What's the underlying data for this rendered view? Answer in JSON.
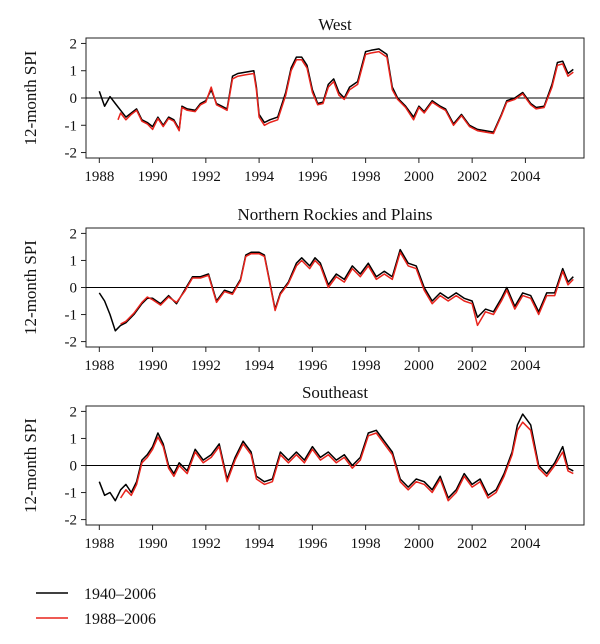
{
  "chart_data": [
    {
      "type": "line",
      "title": "West",
      "ylabel": "12-month SPI",
      "xlabel": "",
      "xlim": [
        1987.5,
        2006.2
      ],
      "ylim": [
        -2.2,
        2.2
      ],
      "xticks": [
        1988,
        1990,
        1992,
        1994,
        1996,
        1998,
        2000,
        2002,
        2004
      ],
      "xtick_labels": [
        "1988",
        "1990",
        "1992",
        "1994",
        "1996",
        "1998",
        "2000",
        "2002",
        "2004"
      ],
      "yticks": [
        -2,
        -1,
        0,
        1,
        2
      ],
      "ytick_labels": [
        "-2",
        "-1",
        "0",
        "1",
        "2"
      ],
      "reference_line": 0,
      "series": [
        {
          "name": "1940–2006",
          "color": "#000000",
          "x": [
            1988.0,
            1988.2,
            1988.4,
            1988.6,
            1988.8,
            1989.0,
            1989.2,
            1989.4,
            1989.6,
            1989.8,
            1990.0,
            1990.2,
            1990.4,
            1990.6,
            1990.8,
            1991.0,
            1991.1,
            1991.3,
            1991.6,
            1991.8,
            1992.0,
            1992.2,
            1992.4,
            1992.6,
            1992.8,
            1993.0,
            1993.2,
            1993.5,
            1993.8,
            1993.9,
            1994.0,
            1994.2,
            1994.4,
            1994.7,
            1995.0,
            1995.2,
            1995.4,
            1995.6,
            1995.8,
            1996.0,
            1996.2,
            1996.4,
            1996.6,
            1996.8,
            1997.0,
            1997.2,
            1997.4,
            1997.7,
            1998.0,
            1998.2,
            1998.5,
            1998.8,
            1999.0,
            1999.2,
            1999.5,
            1999.8,
            2000.0,
            2000.2,
            2000.5,
            2000.8,
            2001.0,
            2001.3,
            2001.6,
            2001.9,
            2002.2,
            2002.5,
            2002.8,
            2003.1,
            2003.3,
            2003.6,
            2003.9,
            2004.2,
            2004.4,
            2004.7,
            2005.0,
            2005.2,
            2005.4,
            2005.6,
            2005.8
          ],
          "y": [
            0.25,
            -0.3,
            0.05,
            -0.2,
            -0.45,
            -0.7,
            -0.55,
            -0.4,
            -0.8,
            -0.9,
            -1.05,
            -0.7,
            -1.0,
            -0.7,
            -0.8,
            -1.15,
            -0.3,
            -0.4,
            -0.45,
            -0.2,
            -0.1,
            0.3,
            -0.2,
            -0.3,
            -0.4,
            0.8,
            0.9,
            0.95,
            1.0,
            0.4,
            -0.6,
            -0.9,
            -0.8,
            -0.7,
            0.2,
            1.1,
            1.5,
            1.5,
            1.2,
            0.3,
            -0.2,
            -0.15,
            0.5,
            0.7,
            0.2,
            0.0,
            0.4,
            0.6,
            1.7,
            1.75,
            1.8,
            1.6,
            0.4,
            0.0,
            -0.3,
            -0.7,
            -0.3,
            -0.5,
            -0.1,
            -0.3,
            -0.4,
            -0.95,
            -0.6,
            -1.0,
            -1.15,
            -1.2,
            -1.25,
            -0.6,
            -0.1,
            0.0,
            0.2,
            -0.2,
            -0.35,
            -0.3,
            0.5,
            1.3,
            1.35,
            0.9,
            1.05
          ]
        },
        {
          "name": "1988–2006",
          "color": "#e8231c",
          "x": [
            1988.7,
            1988.8,
            1989.0,
            1989.2,
            1989.4,
            1989.6,
            1989.8,
            1990.0,
            1990.2,
            1990.4,
            1990.6,
            1990.8,
            1991.0,
            1991.1,
            1991.3,
            1991.6,
            1991.8,
            1992.0,
            1992.2,
            1992.4,
            1992.6,
            1992.8,
            1993.0,
            1993.2,
            1993.5,
            1993.8,
            1993.9,
            1994.0,
            1994.2,
            1994.4,
            1994.7,
            1995.0,
            1995.2,
            1995.4,
            1995.6,
            1995.8,
            1996.0,
            1996.2,
            1996.4,
            1996.6,
            1996.8,
            1997.0,
            1997.2,
            1997.4,
            1997.7,
            1998.0,
            1998.2,
            1998.5,
            1998.8,
            1999.0,
            1999.2,
            1999.5,
            1999.8,
            2000.0,
            2000.2,
            2000.5,
            2000.8,
            2001.0,
            2001.3,
            2001.6,
            2001.9,
            2002.2,
            2002.5,
            2002.8,
            2003.1,
            2003.3,
            2003.6,
            2003.9,
            2004.2,
            2004.4,
            2004.7,
            2005.0,
            2005.2,
            2005.4,
            2005.6,
            2005.8
          ],
          "y": [
            -0.8,
            -0.55,
            -0.8,
            -0.6,
            -0.45,
            -0.85,
            -0.95,
            -1.15,
            -0.75,
            -1.05,
            -0.75,
            -0.85,
            -1.2,
            -0.35,
            -0.45,
            -0.5,
            -0.25,
            -0.15,
            0.4,
            -0.25,
            -0.35,
            -0.45,
            0.7,
            0.8,
            0.85,
            0.9,
            0.3,
            -0.7,
            -1.0,
            -0.9,
            -0.8,
            0.1,
            1.0,
            1.4,
            1.4,
            1.1,
            0.2,
            -0.25,
            -0.2,
            0.4,
            0.6,
            0.1,
            -0.05,
            0.3,
            0.5,
            1.6,
            1.65,
            1.7,
            1.5,
            0.3,
            -0.05,
            -0.35,
            -0.8,
            -0.35,
            -0.55,
            -0.15,
            -0.35,
            -0.45,
            -1.0,
            -0.65,
            -1.05,
            -1.2,
            -1.25,
            -1.3,
            -0.65,
            -0.15,
            -0.05,
            0.15,
            -0.25,
            -0.4,
            -0.35,
            0.4,
            1.2,
            1.25,
            0.8,
            0.95
          ]
        }
      ]
    },
    {
      "type": "line",
      "title": "Northern Rockies and Plains",
      "ylabel": "12-month SPI",
      "xlabel": "",
      "xlim": [
        1987.5,
        2006.2
      ],
      "ylim": [
        -2.2,
        2.2
      ],
      "xticks": [
        1988,
        1990,
        1992,
        1994,
        1996,
        1998,
        2000,
        2002,
        2004
      ],
      "xtick_labels": [
        "1988",
        "1990",
        "1992",
        "1994",
        "1996",
        "1998",
        "2000",
        "2002",
        "2004"
      ],
      "yticks": [
        -2,
        -1,
        0,
        1,
        2
      ],
      "ytick_labels": [
        "-2",
        "-1",
        "0",
        "1",
        "2"
      ],
      "reference_line": 0,
      "series": [
        {
          "name": "1940–2006",
          "color": "#000000",
          "x": [
            1988.0,
            1988.2,
            1988.4,
            1988.6,
            1988.8,
            1989.0,
            1989.3,
            1989.6,
            1989.8,
            1990.0,
            1990.3,
            1990.6,
            1990.9,
            1991.2,
            1991.5,
            1991.8,
            1992.1,
            1992.4,
            1992.7,
            1993.0,
            1993.3,
            1993.5,
            1993.7,
            1994.0,
            1994.2,
            1994.4,
            1994.6,
            1994.8,
            1995.1,
            1995.4,
            1995.6,
            1995.9,
            1996.1,
            1996.3,
            1996.6,
            1996.9,
            1997.2,
            1997.5,
            1997.8,
            1998.1,
            1998.4,
            1998.7,
            1999.0,
            1999.3,
            1999.6,
            1999.9,
            2000.2,
            2000.5,
            2000.8,
            2001.1,
            2001.4,
            2001.7,
            2002.0,
            2002.2,
            2002.5,
            2002.8,
            2003.1,
            2003.3,
            2003.6,
            2003.9,
            2004.2,
            2004.5,
            2004.8,
            2005.1,
            2005.4,
            2005.6,
            2005.8
          ],
          "y": [
            -0.2,
            -0.5,
            -1.0,
            -1.6,
            -1.4,
            -1.3,
            -1.0,
            -0.6,
            -0.4,
            -0.4,
            -0.6,
            -0.3,
            -0.6,
            -0.1,
            0.4,
            0.4,
            0.5,
            -0.5,
            -0.1,
            -0.2,
            0.3,
            1.2,
            1.3,
            1.3,
            1.2,
            0.2,
            -0.8,
            -0.2,
            0.2,
            0.9,
            1.1,
            0.8,
            1.1,
            0.9,
            0.1,
            0.5,
            0.3,
            0.8,
            0.5,
            0.9,
            0.4,
            0.6,
            0.4,
            1.4,
            0.9,
            0.8,
            0.0,
            -0.5,
            -0.2,
            -0.4,
            -0.2,
            -0.4,
            -0.5,
            -1.1,
            -0.8,
            -0.9,
            -0.4,
            0.0,
            -0.7,
            -0.2,
            -0.3,
            -0.9,
            -0.2,
            -0.2,
            0.7,
            0.2,
            0.4
          ]
        },
        {
          "name": "1988–2006",
          "color": "#e8231c",
          "x": [
            1988.8,
            1989.0,
            1989.3,
            1989.6,
            1989.8,
            1990.0,
            1990.3,
            1990.6,
            1990.9,
            1991.2,
            1991.5,
            1991.8,
            1992.1,
            1992.4,
            1992.7,
            1993.0,
            1993.3,
            1993.5,
            1993.7,
            1994.0,
            1994.2,
            1994.4,
            1994.6,
            1994.8,
            1995.1,
            1995.4,
            1995.6,
            1995.9,
            1996.1,
            1996.3,
            1996.6,
            1996.9,
            1997.2,
            1997.5,
            1997.8,
            1998.1,
            1998.4,
            1998.7,
            1999.0,
            1999.3,
            1999.6,
            1999.9,
            2000.2,
            2000.5,
            2000.8,
            2001.1,
            2001.4,
            2001.7,
            2002.0,
            2002.2,
            2002.5,
            2002.8,
            2003.1,
            2003.3,
            2003.6,
            2003.9,
            2004.2,
            2004.5,
            2004.8,
            2005.1,
            2005.4,
            2005.6,
            2005.8
          ],
          "y": [
            -1.35,
            -1.25,
            -0.95,
            -0.55,
            -0.35,
            -0.45,
            -0.65,
            -0.35,
            -0.55,
            -0.15,
            0.35,
            0.35,
            0.45,
            -0.55,
            -0.15,
            -0.25,
            0.25,
            1.15,
            1.25,
            1.25,
            1.15,
            0.15,
            -0.85,
            -0.25,
            0.15,
            0.8,
            1.0,
            0.7,
            1.0,
            0.8,
            0.0,
            0.4,
            0.2,
            0.7,
            0.4,
            0.8,
            0.3,
            0.5,
            0.3,
            1.3,
            0.8,
            0.7,
            -0.1,
            -0.6,
            -0.3,
            -0.5,
            -0.3,
            -0.5,
            -0.6,
            -1.4,
            -0.9,
            -1.0,
            -0.5,
            -0.1,
            -0.8,
            -0.3,
            -0.4,
            -1.0,
            -0.3,
            -0.3,
            0.6,
            0.1,
            0.3
          ]
        }
      ]
    },
    {
      "type": "line",
      "title": "Southeast",
      "ylabel": "12-month SPI",
      "xlabel": "",
      "xlim": [
        1987.5,
        2006.2
      ],
      "ylim": [
        -2.2,
        2.2
      ],
      "xticks": [
        1988,
        1990,
        1992,
        1994,
        1996,
        1998,
        2000,
        2002,
        2004
      ],
      "xtick_labels": [
        "1988",
        "1990",
        "1992",
        "1994",
        "1996",
        "1998",
        "2000",
        "2002",
        "2004"
      ],
      "yticks": [
        -2,
        -1,
        0,
        1,
        2
      ],
      "ytick_labels": [
        "-2",
        "-1",
        "0",
        "1",
        "2"
      ],
      "reference_line": 0,
      "series": [
        {
          "name": "1940–2006",
          "color": "#000000",
          "x": [
            1988.0,
            1988.2,
            1988.4,
            1988.6,
            1988.8,
            1989.0,
            1989.2,
            1989.4,
            1989.6,
            1989.8,
            1990.0,
            1990.2,
            1990.4,
            1990.6,
            1990.8,
            1991.0,
            1991.3,
            1991.6,
            1991.9,
            1992.2,
            1992.5,
            1992.8,
            1993.1,
            1993.4,
            1993.7,
            1993.9,
            1994.2,
            1994.5,
            1994.8,
            1995.1,
            1995.4,
            1995.7,
            1996.0,
            1996.3,
            1996.6,
            1996.9,
            1997.2,
            1997.5,
            1997.8,
            1998.1,
            1998.4,
            1998.7,
            1999.0,
            1999.3,
            1999.6,
            1999.9,
            2000.2,
            2000.5,
            2000.8,
            2001.1,
            2001.4,
            2001.7,
            2002.0,
            2002.3,
            2002.6,
            2002.9,
            2003.2,
            2003.5,
            2003.7,
            2003.9,
            2004.2,
            2004.5,
            2004.8,
            2005.1,
            2005.4,
            2005.6,
            2005.8
          ],
          "y": [
            -0.6,
            -1.1,
            -1.0,
            -1.3,
            -0.9,
            -0.7,
            -1.0,
            -0.6,
            0.2,
            0.4,
            0.7,
            1.2,
            0.8,
            0.0,
            -0.3,
            0.1,
            -0.2,
            0.6,
            0.2,
            0.4,
            0.8,
            -0.5,
            0.3,
            0.9,
            0.5,
            -0.4,
            -0.6,
            -0.5,
            0.5,
            0.2,
            0.5,
            0.2,
            0.7,
            0.3,
            0.5,
            0.2,
            0.4,
            0.0,
            0.3,
            1.2,
            1.3,
            0.9,
            0.5,
            -0.5,
            -0.8,
            -0.5,
            -0.6,
            -0.9,
            -0.4,
            -1.2,
            -0.9,
            -0.3,
            -0.7,
            -0.5,
            -1.1,
            -0.9,
            -0.3,
            0.5,
            1.5,
            1.9,
            1.5,
            0.0,
            -0.3,
            0.1,
            0.7,
            -0.1,
            -0.2
          ]
        },
        {
          "name": "1988–2006",
          "color": "#e8231c",
          "x": [
            1988.8,
            1989.0,
            1989.2,
            1989.4,
            1989.6,
            1989.8,
            1990.0,
            1990.2,
            1990.4,
            1990.6,
            1990.8,
            1991.0,
            1991.3,
            1991.6,
            1991.9,
            1992.2,
            1992.5,
            1992.8,
            1993.1,
            1993.4,
            1993.7,
            1993.9,
            1994.2,
            1994.5,
            1994.8,
            1995.1,
            1995.4,
            1995.7,
            1996.0,
            1996.3,
            1996.6,
            1996.9,
            1997.2,
            1997.5,
            1997.8,
            1998.1,
            1998.4,
            1998.7,
            1999.0,
            1999.3,
            1999.6,
            1999.9,
            2000.2,
            2000.5,
            2000.8,
            2001.1,
            2001.4,
            2001.7,
            2002.0,
            2002.3,
            2002.6,
            2002.9,
            2003.2,
            2003.5,
            2003.7,
            2003.9,
            2004.2,
            2004.5,
            2004.8,
            2005.1,
            2005.4,
            2005.6,
            2005.8
          ],
          "y": [
            -1.2,
            -0.9,
            -1.1,
            -0.7,
            0.1,
            0.3,
            0.6,
            1.05,
            0.7,
            -0.1,
            -0.4,
            0.0,
            -0.3,
            0.5,
            0.1,
            0.3,
            0.7,
            -0.6,
            0.2,
            0.8,
            0.4,
            -0.5,
            -0.7,
            -0.6,
            0.4,
            0.1,
            0.4,
            0.1,
            0.6,
            0.2,
            0.4,
            0.1,
            0.3,
            -0.1,
            0.2,
            1.1,
            1.2,
            0.8,
            0.4,
            -0.6,
            -0.9,
            -0.6,
            -0.7,
            -1.0,
            -0.5,
            -1.3,
            -1.0,
            -0.4,
            -0.8,
            -0.6,
            -1.2,
            -1.0,
            -0.4,
            0.4,
            1.3,
            1.6,
            1.3,
            -0.1,
            -0.4,
            0.0,
            0.5,
            -0.2,
            -0.3
          ]
        }
      ]
    }
  ],
  "legend": {
    "placement": "bottom-left",
    "items": [
      {
        "label": "1940–2006",
        "color": "#000000"
      },
      {
        "label": "1988–2006",
        "color": "#e8231c"
      }
    ]
  }
}
